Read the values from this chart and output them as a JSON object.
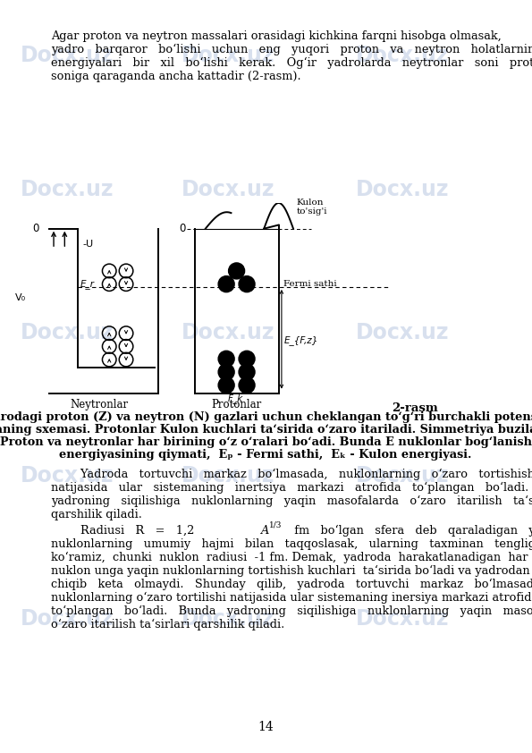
{
  "page_width": 5.95,
  "page_height": 8.42,
  "bg_color": "#ffffff",
  "watermark_color": "#c8d4e8",
  "para1_lines": [
    "Agar proton va neytron massalari orasidagi kichkina farqni hisobga olmasak,",
    "yadro   barqaror   bo‘lishi   uchun   eng   yuqori   proton   va   neytron   holatlarning",
    "energiyalari   bir   xil   bo‘lishi   kerak.   Og‘ir   yadrolarda   neytronlar   soni   protonlar",
    "soniga qaraganda ancha kattadir (2-rasm)."
  ],
  "caption_label": "2-rasm",
  "caption_lines": [
    "Yadrodagi proton (Z) va neytron (N) gazlari uchun cheklangan to‘g‘ri burchakli potensial",
    "o‘raning sxemasi. Protonlar Kulon kuchlari ta‘sirida o‘zaro itariladi. Simmetriya buziladi.",
    "Proton va neytronlar har birining o‘z o‘ralari bo‘adi. Bunda E nuklonlar bog‘lanish",
    "energiyasining qiymati,  Eₚ - Fermi sathi,  Eₖ - Kulon energiyasi."
  ],
  "para2_lines": [
    "        Yadroda   tortuvchi   markaz   bo‘lmasada,   nuklonlarning   o‘zaro   tortishishi",
    "natijasida   ular   sistemaning   inertsiya   markazi   atrofida   to‘plangan   bo‘ladi.   Bunda",
    "yadroning   siqilishiga   nuklonlarning   yaqin   masofalarda   o‘zaro   itarilish   ta‘sirlari",
    "qarshilik qiladi."
  ],
  "para3_lines": [
    "nuklonlarning   umumiy   hajmi   bilan   taqqoslasak,   ularning   taxminan   tengligini",
    "ko‘ramiz,  chunki  nuklon  radiusi  -1 fm. Demak,  yadroda  harakatlanadigan  har   bir",
    "nuklon unga yaqin nuklonlarning tortishish kuchlari  ta‘sirida bo‘ladi va yadrodan",
    "chiqib   keta   olmaydi.   Shunday   qilib,   yadroda   tortuvchi   markaz   bo‘lmasada,",
    "nuklonlarning o‘zaro tortilishi natijasida ular sistemaning inersiya markazi atrofida",
    "to‘plangan   bo‘ladi.   Bunda   yadroning   siqilishiga   nuklonlarning   yaqin   masofalarda",
    "o‘zaro itarilish ta‘sirlari qarshilik qiladi."
  ],
  "page_number": "14"
}
